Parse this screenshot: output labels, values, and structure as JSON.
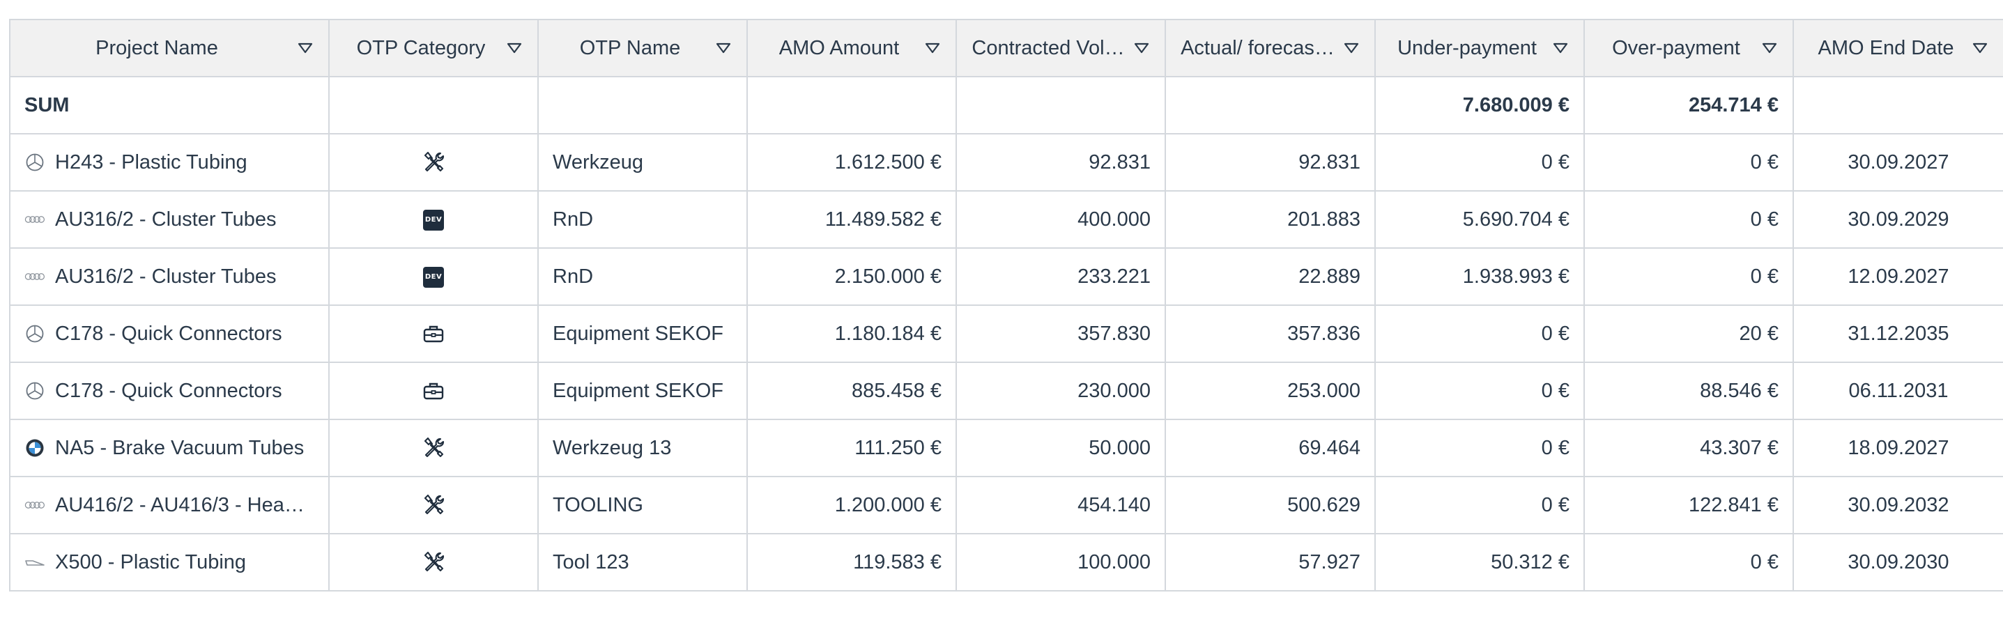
{
  "columns": [
    {
      "key": "project",
      "label": "Project Name"
    },
    {
      "key": "otp_category",
      "label": "OTP Category"
    },
    {
      "key": "otp_name",
      "label": "OTP Name"
    },
    {
      "key": "amo_amount",
      "label": "AMO Amount"
    },
    {
      "key": "contracted_vol",
      "label": "Contracted Vol…"
    },
    {
      "key": "actual_forecast",
      "label": "Actual/ forecas…"
    },
    {
      "key": "under_payment",
      "label": "Under-payment"
    },
    {
      "key": "over_payment",
      "label": "Over-payment"
    },
    {
      "key": "amo_end_date",
      "label": "AMO End Date"
    }
  ],
  "header_colors": {
    "under_payment": "#f2aba3",
    "over_payment": "#c2e4a6"
  },
  "sum_row": {
    "label": "SUM",
    "under_payment": "7.680.009 €",
    "over_payment": "254.714 €"
  },
  "rows": [
    {
      "logo": "mercedes-logo",
      "project": "H243 - Plastic Tubing",
      "category_icon": "tools-icon",
      "otp_name": "Werkzeug",
      "amo_amount": "1.612.500 €",
      "contracted_vol": "92.831",
      "actual_forecast": "92.831",
      "under_payment": "0 €",
      "over_payment": "0 €",
      "amo_end_date": "30.09.2027"
    },
    {
      "logo": "audi-logo",
      "project": "AU316/2 - Cluster Tubes",
      "category_icon": "dev-icon",
      "category_badge": "DEV",
      "otp_name": "RnD",
      "amo_amount": "11.489.582 €",
      "contracted_vol": "400.000",
      "actual_forecast": "201.883",
      "under_payment": "5.690.704 €",
      "over_payment": "0 €",
      "amo_end_date": "30.09.2029"
    },
    {
      "logo": "audi-logo",
      "project": "AU316/2 - Cluster Tubes",
      "category_icon": "dev-icon",
      "category_badge": "DEV",
      "otp_name": "RnD",
      "amo_amount": "2.150.000 €",
      "contracted_vol": "233.221",
      "actual_forecast": "22.889",
      "under_payment": "1.938.993 €",
      "over_payment": "0 €",
      "amo_end_date": "12.09.2027"
    },
    {
      "logo": "mercedes-logo",
      "project": "C178 - Quick Connectors",
      "category_icon": "toolbox-icon",
      "otp_name": "Equipment SEKOF",
      "amo_amount": "1.180.184 €",
      "contracted_vol": "357.830",
      "actual_forecast": "357.836",
      "under_payment": "0 €",
      "over_payment": "20 €",
      "amo_end_date": "31.12.2035"
    },
    {
      "logo": "mercedes-logo",
      "project": "C178 - Quick Connectors",
      "category_icon": "toolbox-icon",
      "otp_name": "Equipment SEKOF",
      "amo_amount": "885.458 €",
      "contracted_vol": "230.000",
      "actual_forecast": "253.000",
      "under_payment": "0 €",
      "over_payment": "88.546 €",
      "amo_end_date": "06.11.2031"
    },
    {
      "logo": "bmw-logo",
      "project": "NA5 - Brake Vacuum Tubes",
      "category_icon": "tools-icon",
      "otp_name": "Werkzeug 13",
      "amo_amount": "111.250 €",
      "contracted_vol": "50.000",
      "actual_forecast": "69.464",
      "under_payment": "0 €",
      "over_payment": "43.307 €",
      "amo_end_date": "18.09.2027"
    },
    {
      "logo": "audi-logo",
      "project": "AU416/2 - AU416/3 - Hea…",
      "category_icon": "tools-icon",
      "otp_name": "TOOLING",
      "amo_amount": "1.200.000 €",
      "contracted_vol": "454.140",
      "actual_forecast": "500.629",
      "under_payment": "0 €",
      "over_payment": "122.841 €",
      "amo_end_date": "30.09.2032"
    },
    {
      "logo": "brand-swoosh-logo",
      "project": "X500 - Plastic Tubing",
      "category_icon": "tools-icon",
      "otp_name": "Tool 123",
      "amo_amount": "119.583 €",
      "contracted_vol": "100.000",
      "actual_forecast": "57.927",
      "under_payment": "50.312 €",
      "over_payment": "0 €",
      "amo_end_date": "30.09.2030"
    }
  ]
}
